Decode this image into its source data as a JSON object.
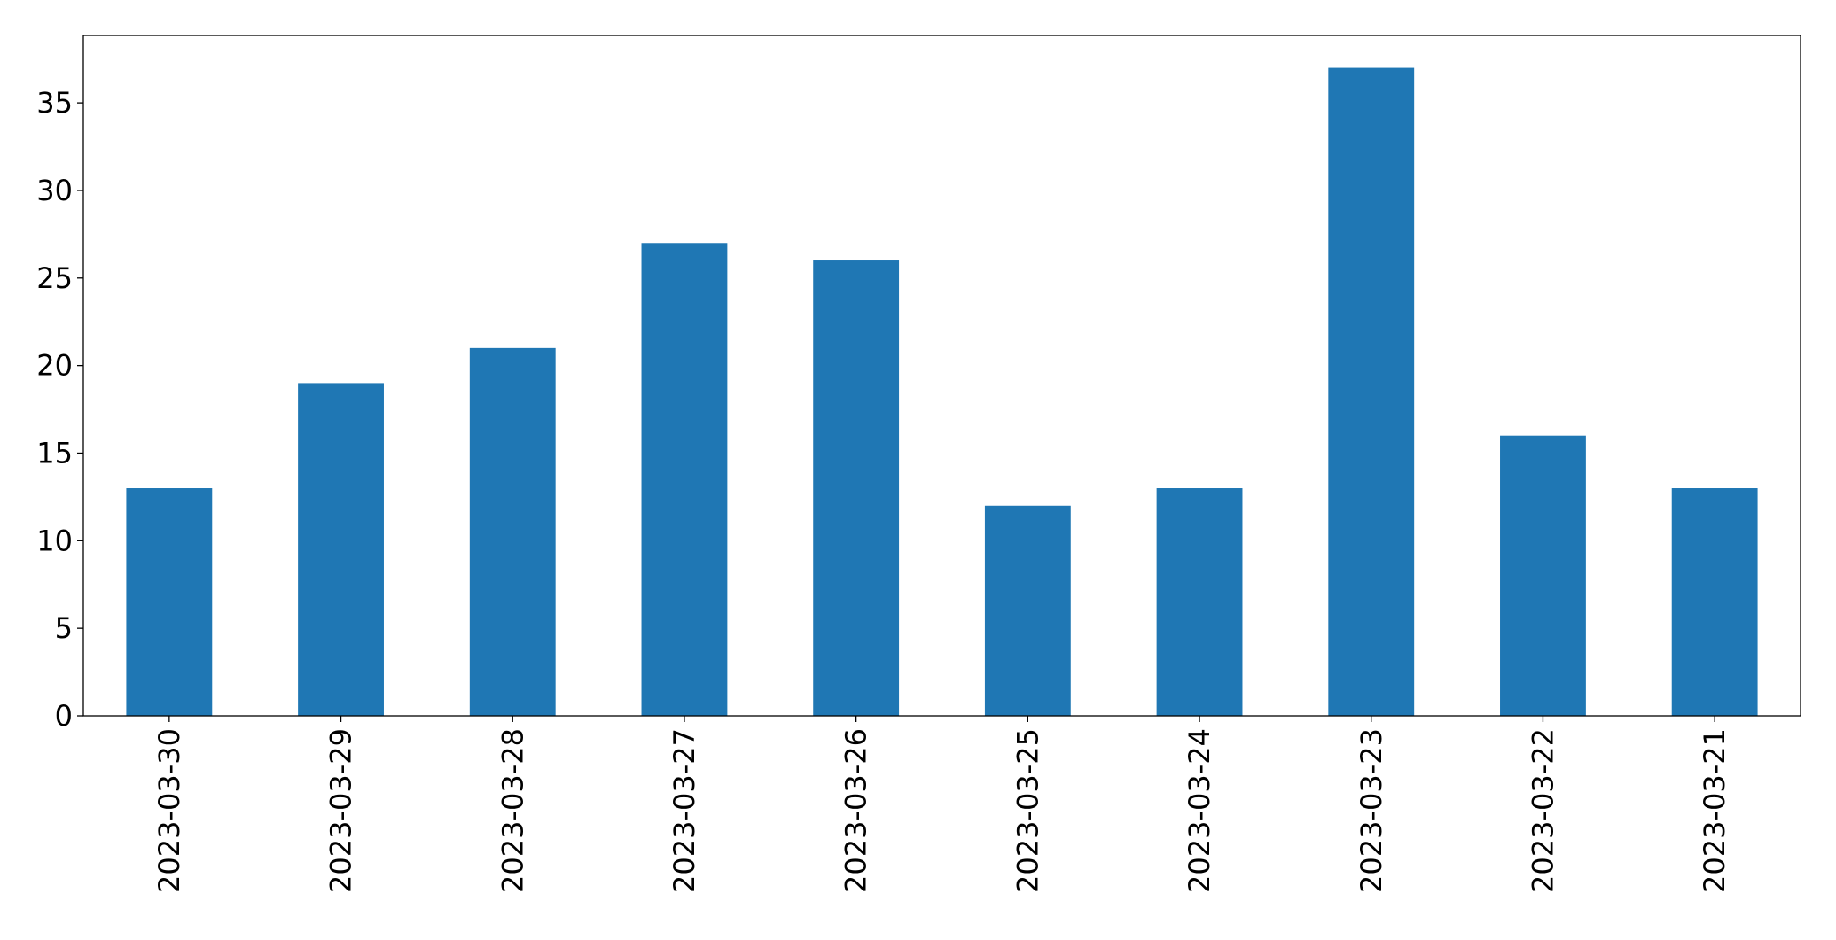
{
  "chart_data": {
    "type": "bar",
    "categories": [
      "2023-03-30",
      "2023-03-29",
      "2023-03-28",
      "2023-03-27",
      "2023-03-26",
      "2023-03-25",
      "2023-03-24",
      "2023-03-23",
      "2023-03-22",
      "2023-03-21"
    ],
    "values": [
      13,
      19,
      21,
      27,
      26,
      12,
      13,
      37,
      16,
      13
    ],
    "color": "#1f77b4",
    "ylim": [
      0,
      38.85
    ],
    "yticks": [
      0,
      5,
      10,
      15,
      20,
      25,
      30,
      35
    ],
    "grid": false
  }
}
